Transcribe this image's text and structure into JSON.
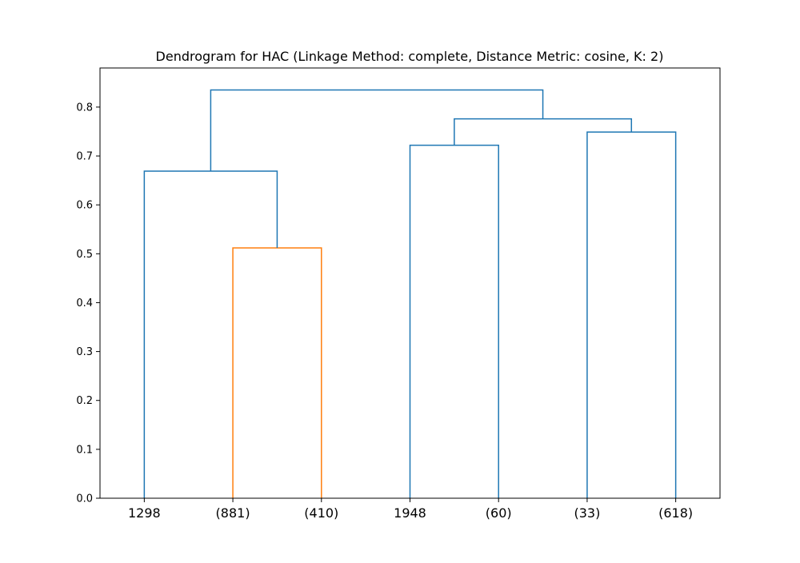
{
  "chart_data": {
    "type": "dendrogram",
    "title": "Dendrogram for HAC (Linkage Method: complete, Distance Metric: cosine, K: 2)",
    "xlabel": "",
    "ylabel": "",
    "ylim": [
      0,
      0.88
    ],
    "yticks": [
      0.0,
      0.1,
      0.2,
      0.3,
      0.4,
      0.5,
      0.6,
      0.7,
      0.8
    ],
    "ytick_labels": [
      "0.0",
      "0.1",
      "0.2",
      "0.3",
      "0.4",
      "0.5",
      "0.6",
      "0.7",
      "0.8"
    ],
    "leaves": [
      "1298",
      "(881)",
      "(410)",
      "1948",
      "(60)",
      "(33)",
      "(618)"
    ],
    "colors": {
      "cluster": "#ff7f0e",
      "above_threshold": "#1f77b4"
    },
    "links": [
      {
        "left": 1,
        "right": 2,
        "height": 0.512,
        "color": "#ff7f0e"
      },
      {
        "left": 0,
        "right": 7,
        "height": 0.669,
        "color": "#1f77b4"
      },
      {
        "left": 3,
        "right": 4,
        "height": 0.722,
        "color": "#1f77b4"
      },
      {
        "left": 5,
        "right": 6,
        "height": 0.749,
        "color": "#1f77b4"
      },
      {
        "left": 9,
        "right": 10,
        "height": 0.776,
        "color": "#1f77b4"
      },
      {
        "left": 8,
        "right": 11,
        "height": 0.835,
        "color": "#1f77b4"
      }
    ]
  }
}
